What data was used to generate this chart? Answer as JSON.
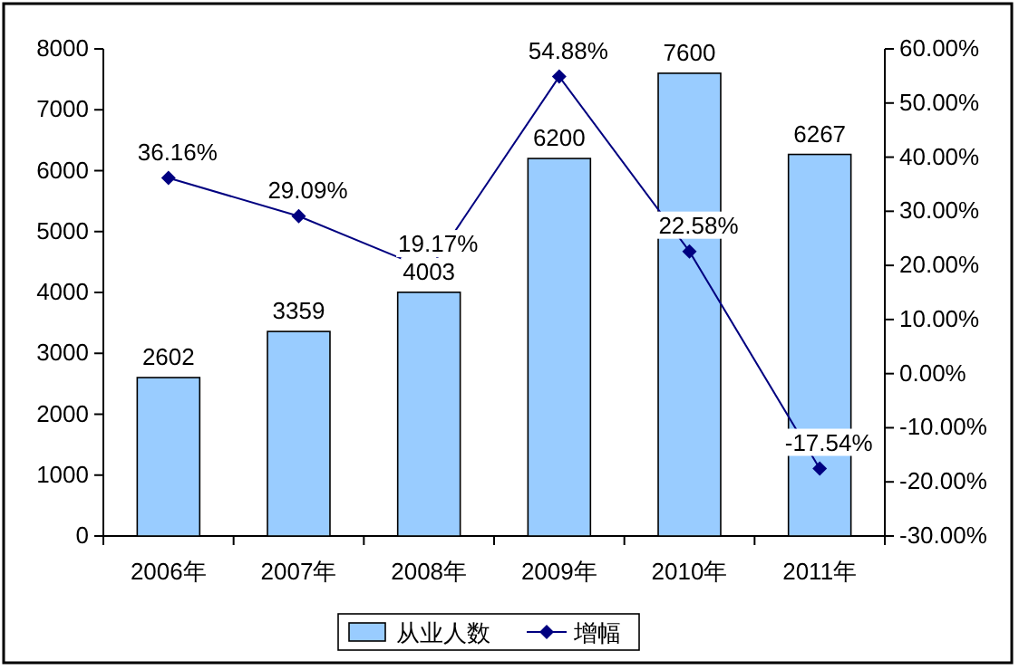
{
  "chart_data": {
    "type": "bar",
    "categories": [
      "2006年",
      "2007年",
      "2008年",
      "2009年",
      "2010年",
      "2011年"
    ],
    "series": [
      {
        "name": "从业人数",
        "color": "#99ccff",
        "values": [
          2602,
          3359,
          4003,
          6200,
          7600,
          6267
        ]
      },
      {
        "name": "增幅",
        "type": "line",
        "axis": "y2",
        "color": "#000080",
        "marker": "diamond",
        "values": [
          36.16,
          29.09,
          19.17,
          54.88,
          22.58,
          -17.54
        ],
        "value_labels": [
          "36.16%",
          "29.09%",
          "19.17%",
          "54.88%",
          "22.58%",
          "-17.54%"
        ]
      }
    ],
    "ylim": [
      0,
      8000
    ],
    "yticks": [
      0,
      1000,
      2000,
      3000,
      4000,
      5000,
      6000,
      7000,
      8000
    ],
    "y2lim": [
      -30,
      60
    ],
    "y2ticks": [
      {
        "value": -30,
        "label": "-30.00%"
      },
      {
        "value": -20,
        "label": "-20.00%"
      },
      {
        "value": -10,
        "label": "-10.00%"
      },
      {
        "value": 0,
        "label": "0.00%"
      },
      {
        "value": 10,
        "label": "10.00%"
      },
      {
        "value": 20,
        "label": "20.00%"
      },
      {
        "value": 30,
        "label": "30.00%"
      },
      {
        "value": 40,
        "label": "40.00%"
      },
      {
        "value": 50,
        "label": "50.00%"
      },
      {
        "value": 60,
        "label": "60.00%"
      }
    ],
    "data_labels": true,
    "legend": "bottom"
  }
}
